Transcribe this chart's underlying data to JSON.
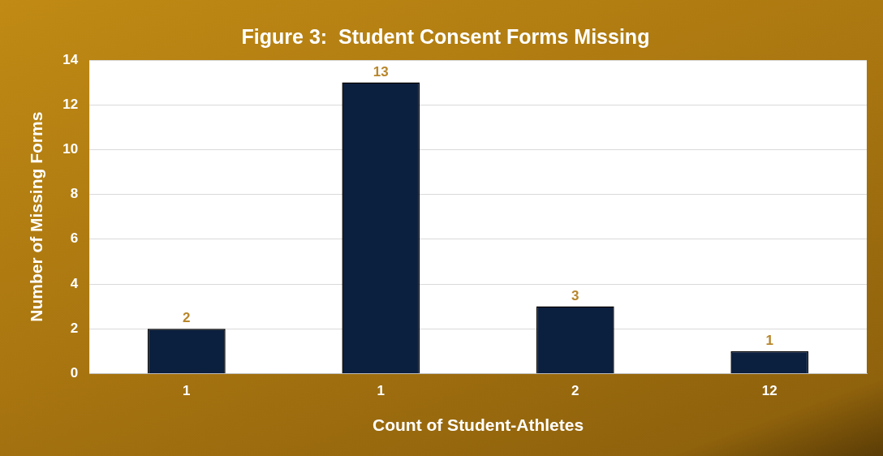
{
  "chart_data": {
    "type": "bar",
    "title": "Figure 3:  Student Consent Forms Missing",
    "xlabel": "Count of Student-Athletes",
    "ylabel": "Number of Missing Forms",
    "categories": [
      "1",
      "1",
      "2",
      "12"
    ],
    "values": [
      2,
      13,
      3,
      1
    ],
    "color": "#0b1f3f",
    "ylim": [
      0,
      14
    ],
    "yticks": [
      0,
      2,
      4,
      6,
      8,
      10,
      12,
      14
    ],
    "grid": "y",
    "data_labels": true,
    "legend": false
  }
}
